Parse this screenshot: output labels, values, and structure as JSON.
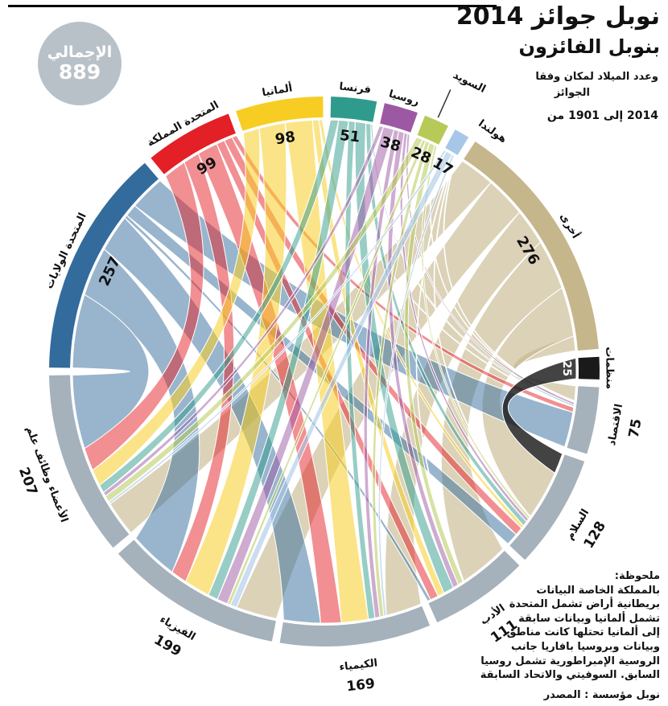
{
  "header": {
    "title": "2014 جوائز نوبل",
    "subtitle": "الفائزون بنوبل",
    "description_line1": "وفقا لمكان الميلاد وعدد",
    "description_line2": "الجوائز",
    "period": "من 1901 إلى 2014"
  },
  "total_badge": {
    "label": "الإجمالي",
    "value": "889"
  },
  "chart_data": {
    "type": "chord",
    "title": "2014 جوائز نوبل — الفائزون بنوبل",
    "total": 889,
    "groups": [
      {
        "id": "usa",
        "label": "الولايات المتحدة",
        "value": 257,
        "color": "#336b9c",
        "kind": "country"
      },
      {
        "id": "uk",
        "label": "المملكة المتحدة",
        "value": 99,
        "color": "#e32025",
        "kind": "country"
      },
      {
        "id": "germany",
        "label": "ألمانيا",
        "value": 98,
        "color": "#f7cd24",
        "kind": "country"
      },
      {
        "id": "france",
        "label": "فرنسا",
        "value": 51,
        "color": "#2f9b8c",
        "kind": "country"
      },
      {
        "id": "russia",
        "label": "روسيا",
        "value": 38,
        "color": "#9d58a4",
        "kind": "country"
      },
      {
        "id": "sweden",
        "label": "السويد",
        "value": 28,
        "color": "#b7c957",
        "kind": "country"
      },
      {
        "id": "netherlands",
        "label": "هولندا",
        "value": 17,
        "color": "#a7c7e8",
        "kind": "country"
      },
      {
        "id": "other",
        "label": "أخرى",
        "value": 276,
        "color": "#c5b68c",
        "kind": "country"
      },
      {
        "id": "organizations",
        "label": "منظمات",
        "value": 25,
        "color": "#1a1a1a",
        "kind": "country"
      },
      {
        "id": "economics",
        "label": "الاقتصاد",
        "value": 75,
        "color": "#a5b1bb",
        "kind": "prize"
      },
      {
        "id": "peace",
        "label": "السلام",
        "value": 128,
        "color": "#a5b1bb",
        "kind": "prize"
      },
      {
        "id": "literature",
        "label": "الأدب",
        "value": 111,
        "color": "#a5b1bb",
        "kind": "prize"
      },
      {
        "id": "chemistry",
        "label": "الكيمياء",
        "value": 169,
        "color": "#a5b1bb",
        "kind": "prize"
      },
      {
        "id": "physics",
        "label": "الفيزياء",
        "value": 199,
        "color": "#a5b1bb",
        "kind": "prize"
      },
      {
        "id": "physiology",
        "label": "علم وظائف الأعضاء",
        "value": 207,
        "color": "#a5b1bb",
        "kind": "prize"
      }
    ],
    "prize_order": [
      "economics",
      "peace",
      "literature",
      "chemistry",
      "physics",
      "physiology"
    ],
    "flows_estimated": true,
    "flows": [
      [
        43,
        15,
        4,
        45,
        60,
        90
      ],
      [
        6,
        10,
        10,
        25,
        20,
        28
      ],
      [
        1,
        4,
        8,
        33,
        32,
        20
      ],
      [
        2,
        6,
        13,
        8,
        12,
        10
      ],
      [
        3,
        4,
        7,
        6,
        13,
        5
      ],
      [
        1,
        3,
        7,
        5,
        4,
        8
      ],
      [
        1,
        1,
        1,
        3,
        8,
        3
      ],
      [
        18,
        60,
        61,
        44,
        50,
        43
      ],
      [
        0,
        25,
        0,
        0,
        0,
        0
      ]
    ]
  },
  "note": {
    "heading": "ملحوظة:",
    "lines": [
      "البيانات الخاصة بالمملكة",
      "المتحدة تشمل أراض بريطانية",
      "سابقة وبيانات ألمانيا تشمل",
      "مناطق كانت تحتلها ألمانيا إلى",
      "جانب بافاريا وبروسيا وبيانات",
      "روسيا تشمل الإمبراطورية الروسية",
      "السابقة والاتحاد السوفيتي السابق."
    ]
  },
  "source": "المصدر : مؤسسة نوبل"
}
